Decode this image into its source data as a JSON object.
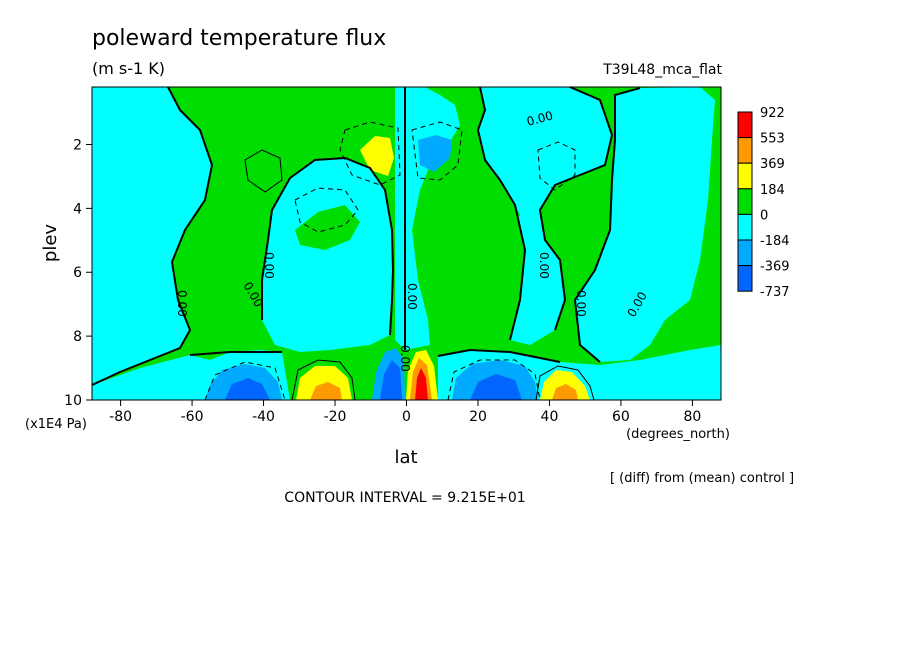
{
  "chart_data": {
    "type": "heatmap",
    "title": "poleward temperature flux",
    "units": "(m s-1 K)",
    "run_label": "T39L48_mca_flat",
    "xlabel": "lat",
    "x_units": "(degrees_north)",
    "ylabel": "plev",
    "y_units": "(x1E4 Pa)",
    "xlim": [
      -88,
      88
    ],
    "ylim": [
      10,
      0.2
    ],
    "x_ticks": [
      -80,
      -60,
      -40,
      -20,
      0,
      20,
      40,
      60,
      80
    ],
    "x_tick_labels": [
      "-80",
      "-60",
      "-40",
      "-20",
      "0",
      "20",
      "40",
      "60",
      "80"
    ],
    "y_ticks": [
      2,
      4,
      6,
      8,
      10
    ],
    "y_tick_labels": [
      "2",
      "4",
      "6",
      "8",
      "10"
    ],
    "colorbar_levels": [
      "922",
      "553",
      "369",
      "184",
      "0",
      "-184",
      "-369",
      "-737"
    ],
    "colorbar_colors": [
      "#ff0000",
      "#ff9900",
      "#ffff00",
      "#00dd00",
      "#00ffff",
      "#00aaff",
      "#0066ff"
    ],
    "zero_contour_label": "0.00",
    "note": "[ (diff) from (mean) control ]",
    "contour_interval_text": "CONTOUR INTERVAL = 9.215E+01",
    "legend_placement": "right",
    "grid": false,
    "features": [
      {
        "lat": -28,
        "plev": 9.6,
        "value": 450
      },
      {
        "lat": -44,
        "plev": 9.6,
        "value": -300
      },
      {
        "lat": -5,
        "plev": 9.4,
        "value": -500
      },
      {
        "lat": 5,
        "plev": 9.2,
        "value": 900
      },
      {
        "lat": 25,
        "plev": 9.5,
        "value": -300
      },
      {
        "lat": 44,
        "plev": 9.5,
        "value": 420
      },
      {
        "lat": -8,
        "plev": 2.3,
        "value": 250
      },
      {
        "lat": 8,
        "plev": 2.3,
        "value": -250
      }
    ]
  }
}
